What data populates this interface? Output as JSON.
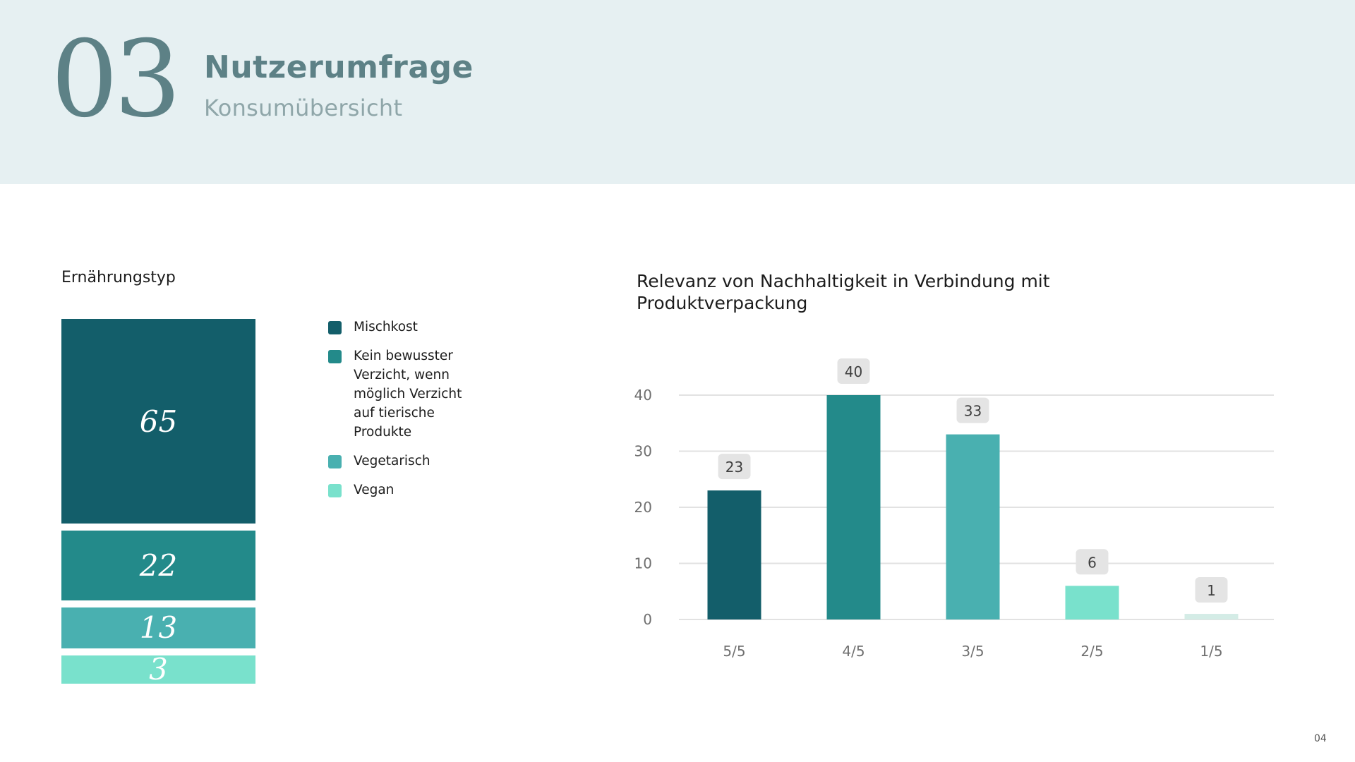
{
  "header": {
    "section_number": "03",
    "title": "Nutzerumfrage",
    "subtitle": "Konsumübersicht"
  },
  "diet": {
    "title": "Ernährungstyp",
    "segments": [
      {
        "value": "65",
        "label": "Mischkost",
        "color": "#135e6a"
      },
      {
        "value": "22",
        "label": "Kein bewusster Verzicht, wenn möglich Verzicht auf tierische Produkte",
        "color": "#238a8a"
      },
      {
        "value": "13",
        "label": "Vegetarisch",
        "color": "#49b0b0"
      },
      {
        "value": "3",
        "label": "Vegan",
        "color": "#79e1cc"
      }
    ]
  },
  "chart_data": {
    "type": "bar",
    "title": "Relevanz von Nachhaltigkeit in Verbindung mit Produktverpackung",
    "categories": [
      "5/5",
      "4/5",
      "3/5",
      "2/5",
      "1/5"
    ],
    "values": [
      23,
      40,
      33,
      6,
      1
    ],
    "colors": [
      "#135e6a",
      "#238a8a",
      "#49b0b0",
      "#79e1cc",
      "#d4ece6"
    ],
    "ylim": [
      0,
      40
    ],
    "yticks": [
      0,
      10,
      20,
      30,
      40
    ],
    "grid": true,
    "xlabel": "",
    "ylabel": ""
  },
  "footer": {
    "page_number": "04"
  }
}
